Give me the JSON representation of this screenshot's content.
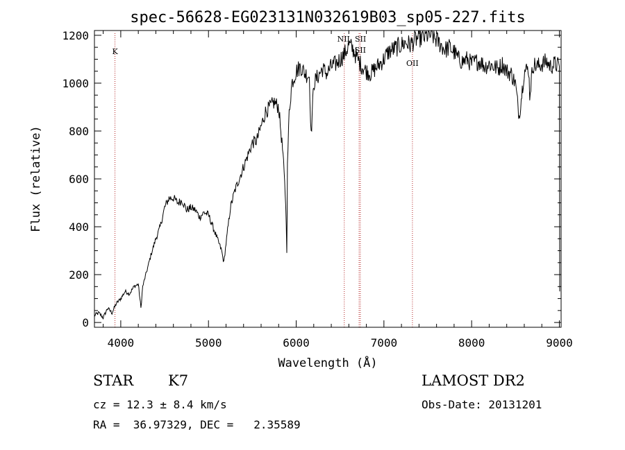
{
  "chart_data": {
    "type": "line",
    "title": "spec-56628-EG023131N032619B03_sp05-227.fits",
    "xlabel": "Wavelength (Å)",
    "ylabel": "Flux (relative)",
    "xlim": [
      3700,
      9020
    ],
    "ylim": [
      -20,
      1220
    ],
    "xticks": [
      4000,
      5000,
      6000,
      7000,
      8000,
      9000
    ],
    "yticks": [
      0,
      200,
      400,
      600,
      800,
      1000,
      1200
    ],
    "grid": false,
    "series": [
      {
        "x": [
          3700,
          3750,
          3800,
          3850,
          3900,
          3950,
          4000,
          4050,
          4100,
          4150,
          4200,
          4230,
          4250,
          4300,
          4350,
          4400,
          4450,
          4500,
          4550,
          4600,
          4650,
          4700,
          4750,
          4800,
          4850,
          4900,
          4950,
          5000,
          5050,
          5100,
          5150,
          5175,
          5200,
          5250,
          5300,
          5350,
          5400,
          5450,
          5500,
          5550,
          5600,
          5650,
          5700,
          5750,
          5800,
          5850,
          5880,
          5893,
          5900,
          5920,
          5950,
          6000,
          6050,
          6100,
          6150,
          6170,
          6200,
          6250,
          6300,
          6350,
          6400,
          6450,
          6500,
          6550,
          6600,
          6650,
          6700,
          6750,
          6800,
          6850,
          6900,
          6950,
          7000,
          7050,
          7100,
          7150,
          7200,
          7250,
          7300,
          7350,
          7400,
          7450,
          7500,
          7550,
          7600,
          7650,
          7700,
          7750,
          7800,
          7850,
          7900,
          7950,
          8000,
          8050,
          8100,
          8150,
          8200,
          8250,
          8300,
          8350,
          8400,
          8450,
          8498,
          8542,
          8600,
          8650,
          8662,
          8700,
          8750,
          8800,
          8850,
          8900,
          8950,
          9000
        ],
        "y": [
          30,
          40,
          20,
          60,
          40,
          80,
          100,
          130,
          120,
          150,
          160,
          60,
          150,
          220,
          290,
          350,
          400,
          480,
          520,
          520,
          500,
          510,
          470,
          480,
          470,
          440,
          460,
          450,
          400,
          350,
          300,
          250,
          330,
          480,
          550,
          600,
          650,
          700,
          750,
          760,
          820,
          880,
          900,
          920,
          900,
          700,
          500,
          300,
          650,
          880,
          1000,
          1050,
          1070,
          1040,
          1030,
          780,
          1000,
          1030,
          1060,
          1040,
          1070,
          1080,
          1100,
          1120,
          1160,
          1140,
          1100,
          1070,
          1050,
          1040,
          1060,
          1080,
          1100,
          1130,
          1140,
          1150,
          1160,
          1170,
          1160,
          1180,
          1190,
          1190,
          1200,
          1200,
          1180,
          1160,
          1140,
          1150,
          1130,
          1100,
          1090,
          1100,
          1080,
          1090,
          1090,
          1070,
          1080,
          1070,
          1060,
          1080,
          1050,
          1040,
          1000,
          860,
          1050,
          1060,
          950,
          1080,
          1070,
          1080,
          1090,
          1070,
          1080,
          1070
        ]
      }
    ],
    "annotations": [
      {
        "label": "K",
        "x": 3934
      },
      {
        "label": "NII",
        "x": 6548
      },
      {
        "label": "SII",
        "x": 6717
      },
      {
        "label": "SII",
        "x": 6731
      },
      {
        "label": "OII",
        "x": 7325
      }
    ]
  },
  "info": {
    "class": "STAR",
    "subclass": "K7",
    "survey": "LAMOST DR2",
    "cz": "cz = 12.3 ± 8.4 km/s",
    "obs_date": "Obs-Date: 20131201",
    "radec": "RA =  36.97329, DEC =   2.35589"
  },
  "colors": {
    "spectrum": "#000000",
    "line_marker": "#b22222"
  }
}
